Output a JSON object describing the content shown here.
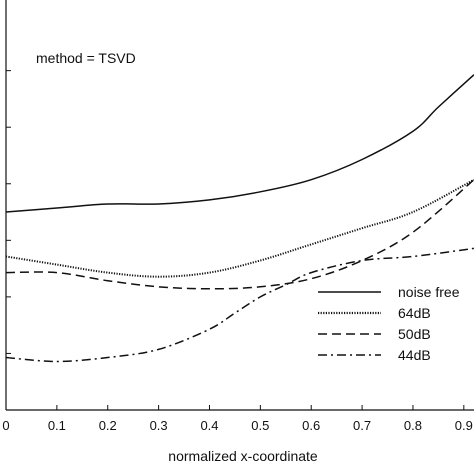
{
  "chart_data": {
    "type": "line",
    "title": "",
    "xlabel": "normalized x-coordinate",
    "ylabel": "",
    "xlim": [
      0,
      0.92
    ],
    "ylim": [
      0,
      1
    ],
    "grid": false,
    "legend_position": "lower-right",
    "annotation": "method = TSVD",
    "x_ticks": [
      0,
      0.1,
      0.2,
      0.3,
      0.4,
      0.5,
      0.6,
      0.7,
      0.8,
      0.9
    ],
    "x_tick_labels": [
      "0",
      "0.1",
      "0.2",
      "0.3",
      "0.4",
      "0.5",
      "0.6",
      "0.7",
      "0.8",
      "0.9"
    ],
    "y_ticks": [
      0.14,
      0.28,
      0.42,
      0.56,
      0.7,
      0.84
    ],
    "series": [
      {
        "name": "noise free",
        "style": "solid",
        "x": [
          0,
          0.1,
          0.2,
          0.3,
          0.4,
          0.5,
          0.6,
          0.7,
          0.8,
          0.85,
          0.92
        ],
        "y": [
          0.49,
          0.5,
          0.51,
          0.51,
          0.52,
          0.54,
          0.57,
          0.62,
          0.69,
          0.75,
          0.83
        ]
      },
      {
        "name": "64dB",
        "style": "dotted",
        "x": [
          0,
          0.1,
          0.2,
          0.3,
          0.4,
          0.5,
          0.6,
          0.7,
          0.8,
          0.92
        ],
        "y": [
          0.38,
          0.36,
          0.34,
          0.33,
          0.34,
          0.37,
          0.41,
          0.45,
          0.49,
          0.57
        ]
      },
      {
        "name": "50dB",
        "style": "dashed",
        "x": [
          0,
          0.1,
          0.2,
          0.3,
          0.4,
          0.5,
          0.6,
          0.7,
          0.8,
          0.92
        ],
        "y": [
          0.34,
          0.34,
          0.32,
          0.305,
          0.3,
          0.305,
          0.325,
          0.37,
          0.44,
          0.57
        ]
      },
      {
        "name": "44dB",
        "style": "dashdot",
        "x": [
          0,
          0.1,
          0.2,
          0.3,
          0.4,
          0.45,
          0.5,
          0.55,
          0.6,
          0.7,
          0.8,
          0.92
        ],
        "y": [
          0.13,
          0.12,
          0.13,
          0.15,
          0.2,
          0.24,
          0.28,
          0.31,
          0.34,
          0.37,
          0.38,
          0.4
        ]
      }
    ]
  }
}
